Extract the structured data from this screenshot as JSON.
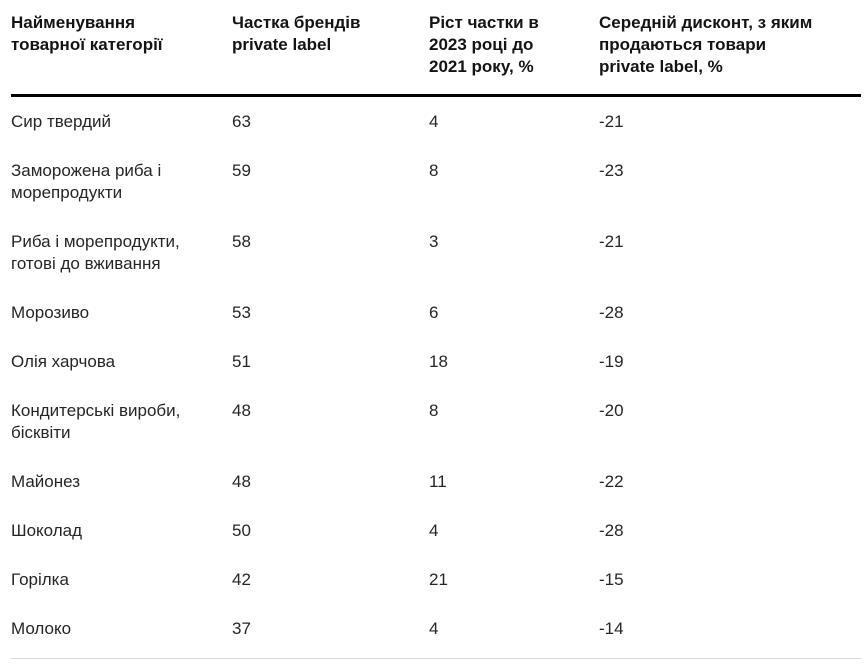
{
  "chart_data": {
    "type": "table",
    "title": "",
    "columns": [
      "Найменування товарної категорії",
      "Частка брендів private label",
      "Ріст частки в 2023 році до 2021 року, %",
      "Середній дисконт, з яким продаються товари private label, %"
    ],
    "rows": [
      [
        "Сир твердий",
        "63",
        "4",
        "-21"
      ],
      [
        "Заморожена риба і морепродукти",
        "59",
        "8",
        "-23"
      ],
      [
        "Риба і морепродукти, готові до вживання",
        "58",
        "3",
        "-21"
      ],
      [
        "Морозиво",
        "53",
        "6",
        "-28"
      ],
      [
        "Олія харчова",
        "51",
        "18",
        "-19"
      ],
      [
        "Кондитерські вироби, бісквіти",
        "48",
        "8",
        "-20"
      ],
      [
        "Майонез",
        "48",
        "11",
        "-22"
      ],
      [
        "Шоколад",
        "50",
        "4",
        "-28"
      ],
      [
        "Горілка",
        "42",
        "21",
        "-15"
      ],
      [
        "Молоко",
        "37",
        "4",
        "-14"
      ]
    ],
    "layout": {
      "header_rule_color": "#000000",
      "bottom_rule_color": "#d9d9d9",
      "text_color": "#262626",
      "header_text_color": "#141414",
      "background_color": "#ffffff",
      "grid": "header-rule-and-bottom-rule-only"
    }
  }
}
